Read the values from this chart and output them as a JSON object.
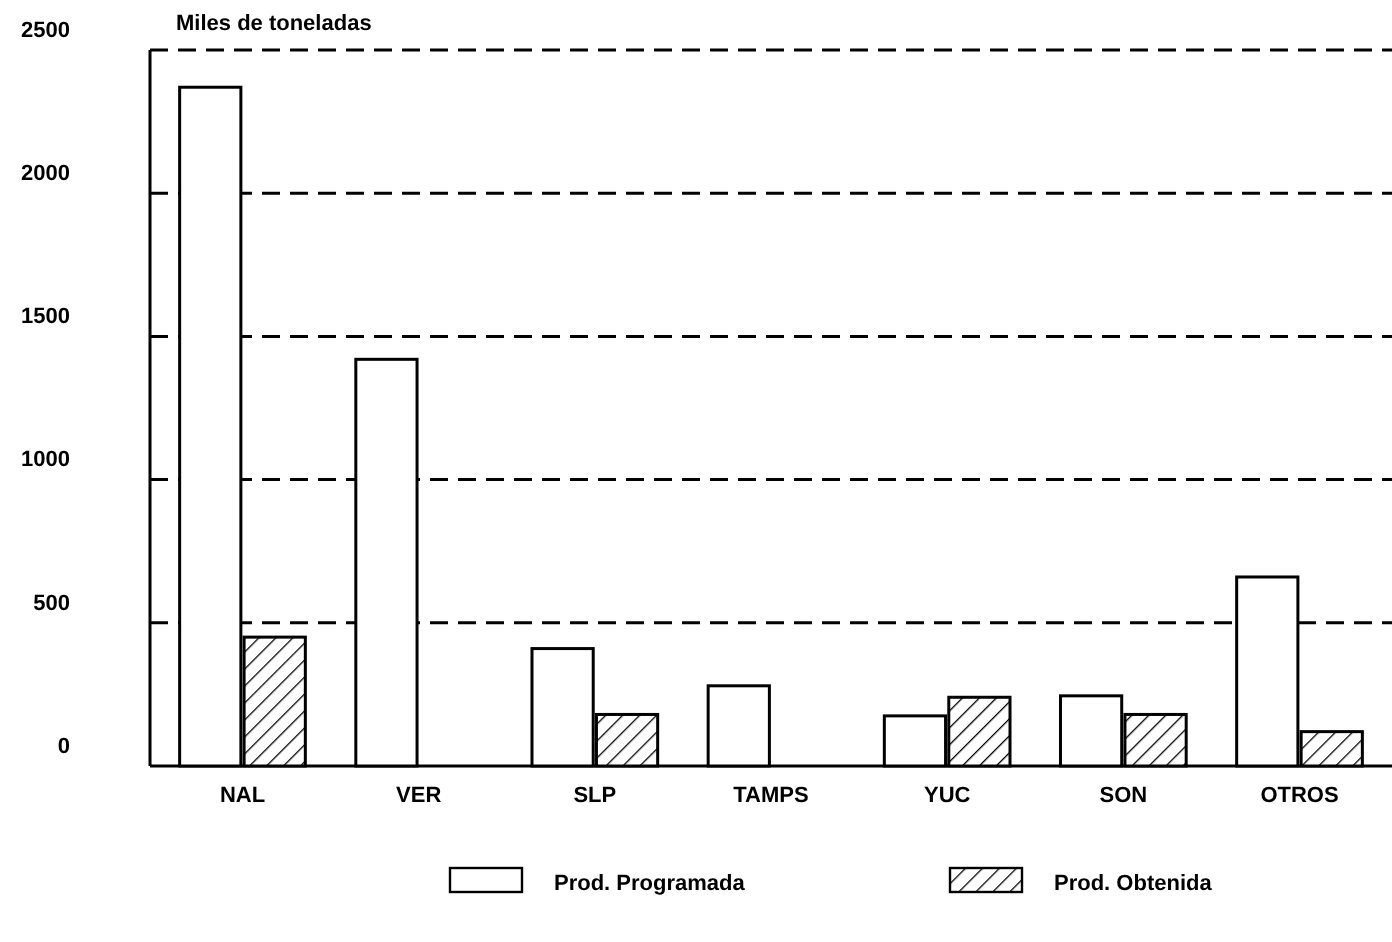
{
  "chart_data": {
    "type": "bar",
    "ylabel": "Miles de toneladas",
    "categories": [
      "NAL",
      "VER",
      "SLP",
      "TAMPS",
      "YUC",
      "SON",
      "OTROS"
    ],
    "series": [
      {
        "name": "Prod. Programada",
        "color": "#ffffff",
        "values": [
          2370,
          1420,
          410,
          280,
          175,
          245,
          660
        ]
      },
      {
        "name": "Prod. Obtenida",
        "color": "#000000",
        "values": [
          450,
          0,
          180,
          0,
          240,
          180,
          120
        ]
      }
    ],
    "ylim": [
      0,
      2500
    ],
    "yticks": [
      0,
      500,
      1000,
      1500,
      2000,
      2500
    ],
    "grid": "y",
    "legend": "bottom"
  }
}
